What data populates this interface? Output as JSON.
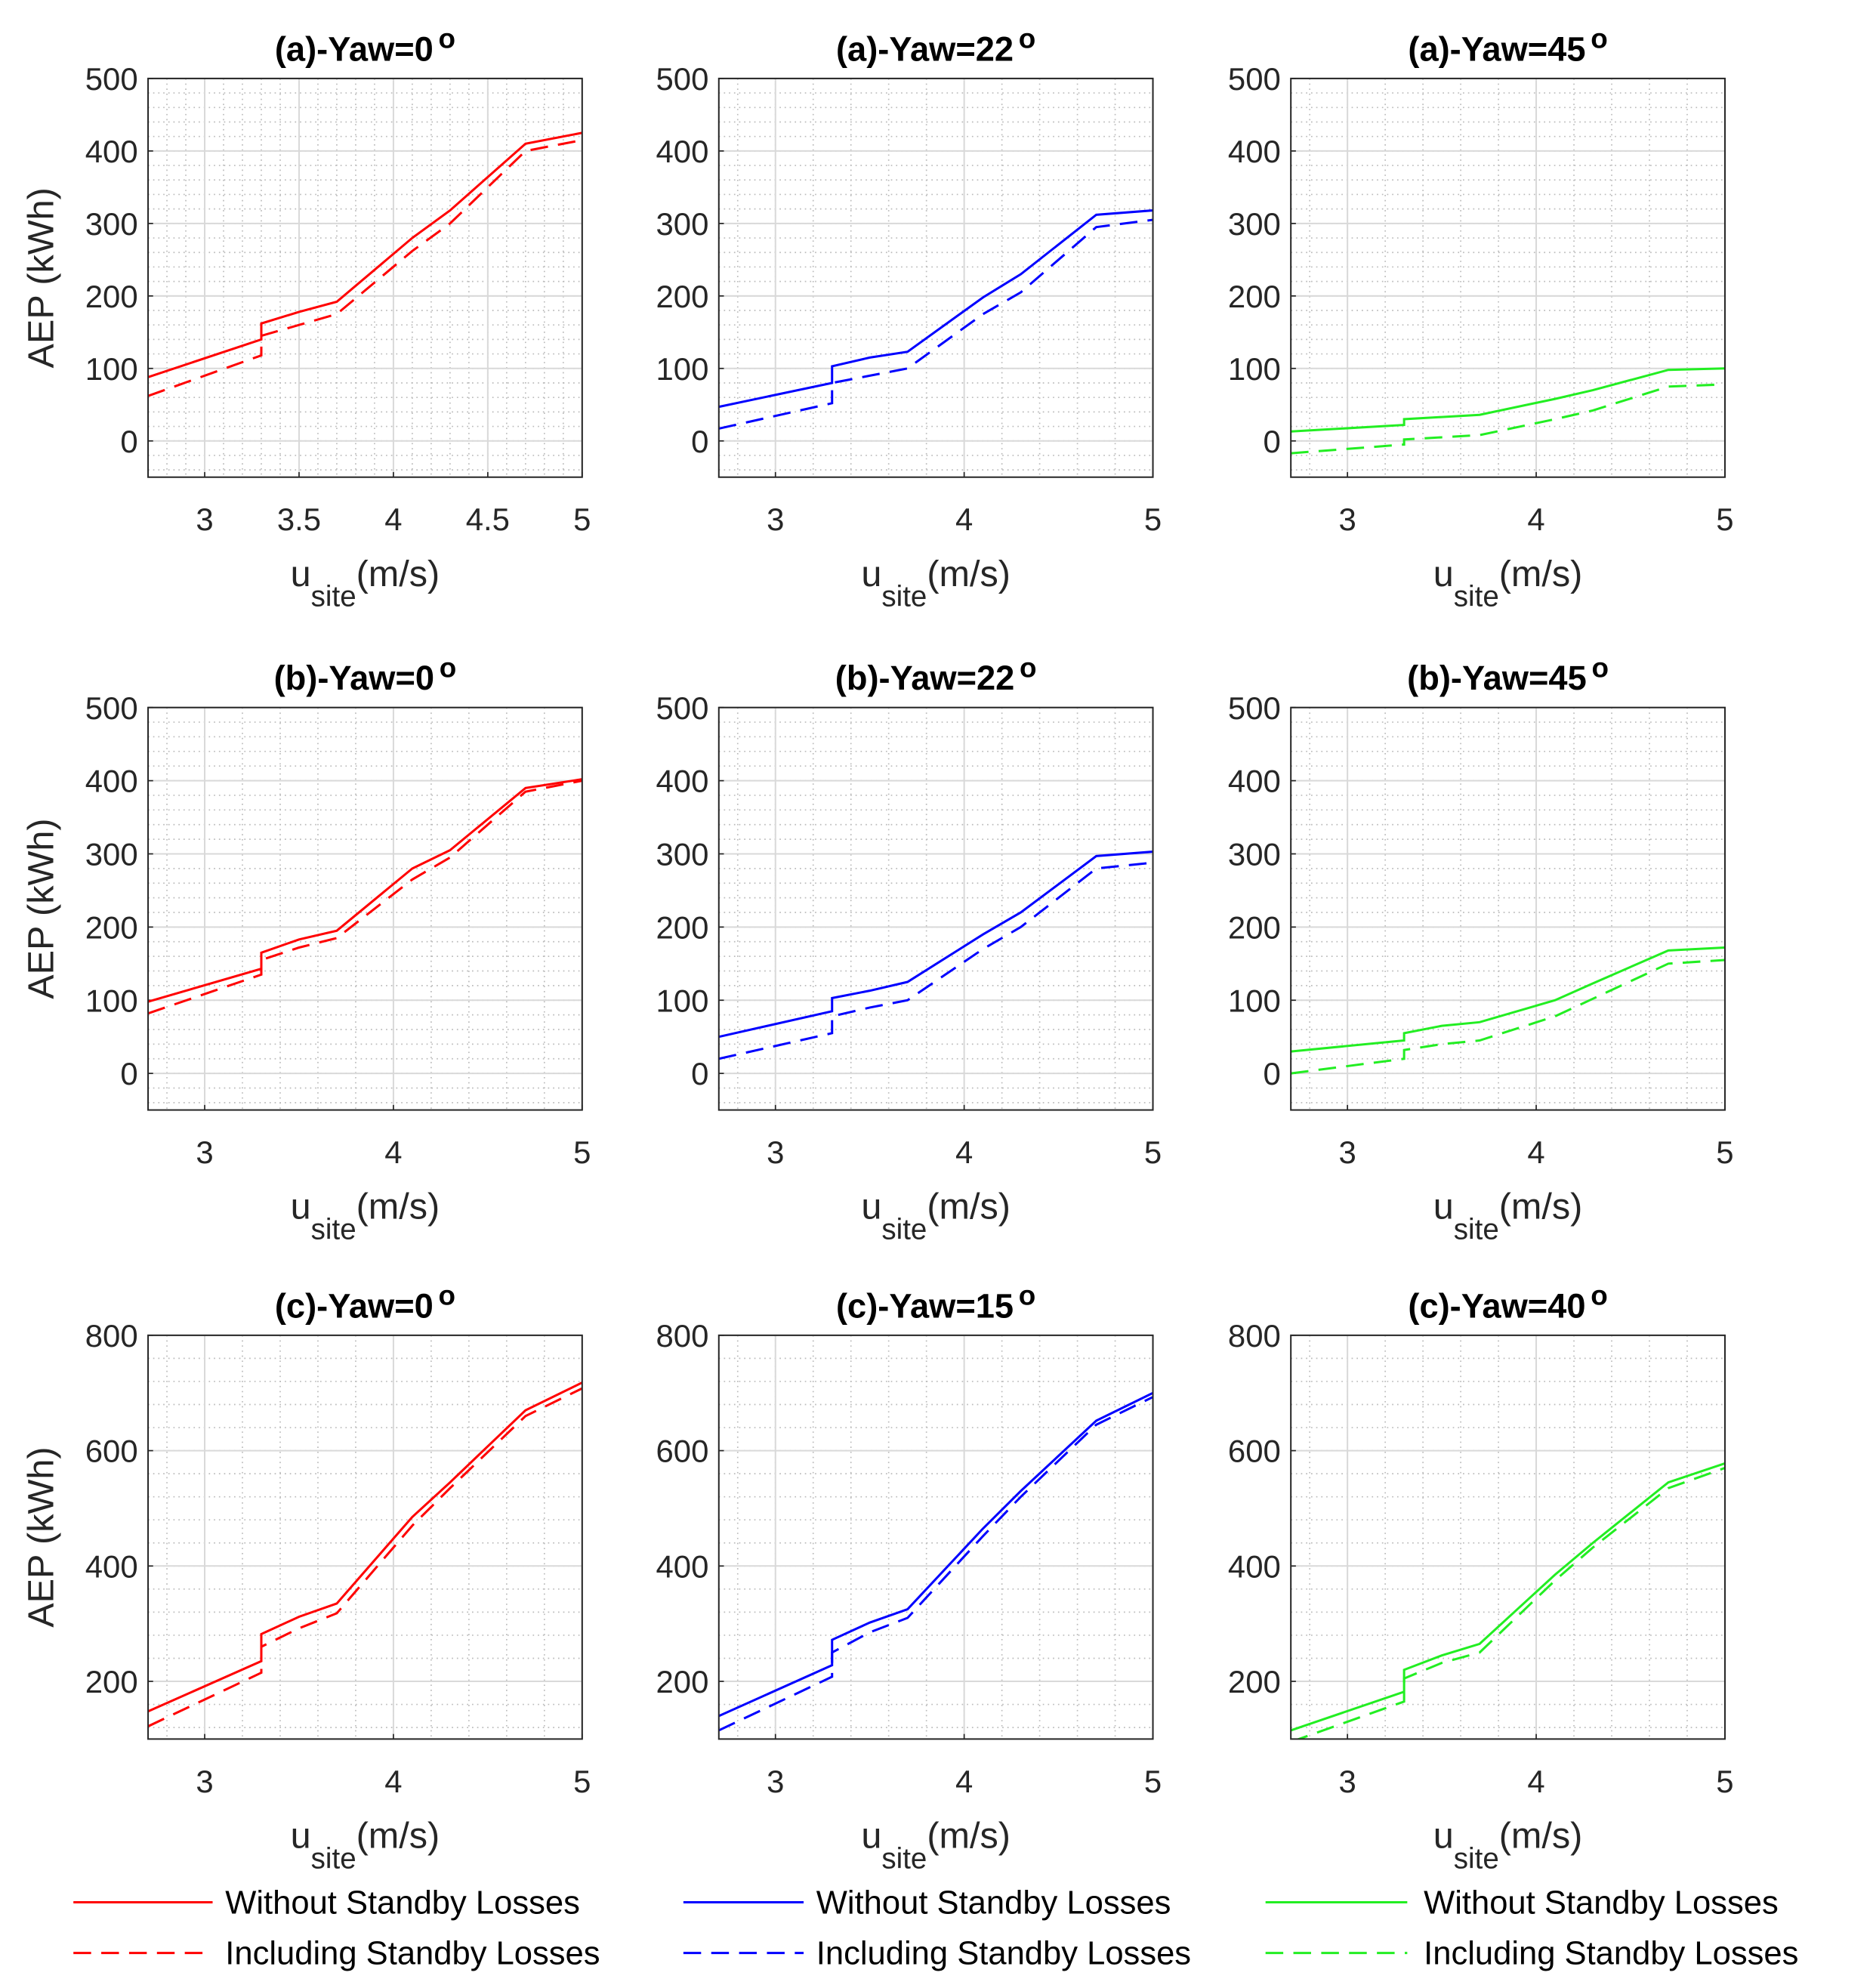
{
  "chart_data": [
    {
      "type": "line",
      "title": "(a)-Yaw=0",
      "title_superscript": "o",
      "ylabel": "AEP (kWh)",
      "xlabel": "u",
      "xlabel_subscript": "site",
      "xlabel_suffix": "(m/s)",
      "x": [
        2.7,
        3.3,
        3.3,
        3.5,
        3.7,
        4.1,
        4.3,
        4.7,
        5.0
      ],
      "xlim": [
        2.7,
        5
      ],
      "xticks": [
        3,
        3.5,
        4,
        4.5,
        5
      ],
      "ylim": [
        -50,
        500
      ],
      "yticks": [
        0,
        100,
        200,
        300,
        400,
        500
      ],
      "grid": true,
      "minor_grid": true,
      "series": [
        {
          "name": "Without Standby Losses",
          "color": "#ff0000",
          "line_style": "solid",
          "values": [
            88,
            140,
            162,
            178,
            192,
            280,
            318,
            410,
            425
          ]
        },
        {
          "name": "Including Standby Losses",
          "color": "#ff0000",
          "line_style": "dashed",
          "values": [
            62,
            118,
            145,
            160,
            175,
            262,
            300,
            400,
            415
          ]
        }
      ]
    },
    {
      "type": "line",
      "title": "(a)-Yaw=22",
      "title_superscript": "o",
      "xlabel": "u",
      "xlabel_subscript": "site",
      "xlabel_suffix": "(m/s)",
      "x": [
        2.7,
        3.3,
        3.3,
        3.5,
        3.7,
        4.1,
        4.3,
        4.7,
        5.0
      ],
      "xlim": [
        2.7,
        5
      ],
      "xticks": [
        3,
        4,
        5
      ],
      "ylim": [
        -50,
        500
      ],
      "yticks": [
        0,
        100,
        200,
        300,
        400,
        500
      ],
      "grid": true,
      "minor_grid": true,
      "series": [
        {
          "name": "Without Standby Losses",
          "color": "#0000ff",
          "line_style": "solid",
          "values": [
            47,
            80,
            103,
            115,
            123,
            198,
            230,
            312,
            318
          ]
        },
        {
          "name": "Including Standby Losses",
          "color": "#0000ff",
          "line_style": "dashed",
          "values": [
            17,
            52,
            80,
            90,
            100,
            175,
            205,
            295,
            305
          ]
        }
      ]
    },
    {
      "type": "line",
      "title": "(a)-Yaw=45",
      "title_superscript": "o",
      "xlabel": "u",
      "xlabel_subscript": "site",
      "xlabel_suffix": "(m/s)",
      "x": [
        2.7,
        3.3,
        3.3,
        3.5,
        3.7,
        4.1,
        4.3,
        4.7,
        5.0
      ],
      "xlim": [
        2.7,
        5
      ],
      "xticks": [
        3,
        4,
        5
      ],
      "ylim": [
        -50,
        500
      ],
      "yticks": [
        0,
        100,
        200,
        300,
        400,
        500
      ],
      "grid": true,
      "minor_grid": true,
      "series": [
        {
          "name": "Without Standby Losses",
          "color": "#22ee22",
          "line_style": "solid",
          "values": [
            13,
            22,
            30,
            33,
            36,
            58,
            70,
            98,
            100
          ]
        },
        {
          "name": "Including Standby Losses",
          "color": "#22ee22",
          "line_style": "dashed",
          "values": [
            -17,
            -5,
            2,
            5,
            8,
            30,
            42,
            75,
            78
          ]
        }
      ]
    },
    {
      "type": "line",
      "title": "(b)-Yaw=0",
      "title_superscript": "o",
      "ylabel": "AEP (kWh)",
      "xlabel": "u",
      "xlabel_subscript": "site",
      "xlabel_suffix": "(m/s)",
      "x": [
        2.7,
        3.3,
        3.3,
        3.5,
        3.7,
        4.1,
        4.3,
        4.7,
        5.0
      ],
      "xlim": [
        2.7,
        5
      ],
      "xticks": [
        3,
        4,
        5
      ],
      "ylim": [
        -50,
        500
      ],
      "yticks": [
        0,
        100,
        200,
        300,
        400,
        500
      ],
      "grid": true,
      "minor_grid": true,
      "series": [
        {
          "name": "Without Standby Losses",
          "color": "#ff0000",
          "line_style": "solid",
          "values": [
            98,
            143,
            165,
            183,
            195,
            280,
            305,
            390,
            402
          ]
        },
        {
          "name": "Including Standby Losses",
          "color": "#ff0000",
          "line_style": "dashed",
          "values": [
            82,
            135,
            155,
            172,
            185,
            265,
            295,
            385,
            400
          ]
        }
      ]
    },
    {
      "type": "line",
      "title": "(b)-Yaw=22",
      "title_superscript": "o",
      "xlabel": "u",
      "xlabel_subscript": "site",
      "xlabel_suffix": "(m/s)",
      "x": [
        2.7,
        3.3,
        3.3,
        3.5,
        3.7,
        4.1,
        4.3,
        4.7,
        5.0
      ],
      "xlim": [
        2.7,
        5
      ],
      "xticks": [
        3,
        4,
        5
      ],
      "ylim": [
        -50,
        500
      ],
      "yticks": [
        0,
        100,
        200,
        300,
        400,
        500
      ],
      "grid": true,
      "minor_grid": true,
      "series": [
        {
          "name": "Without Standby Losses",
          "color": "#0000ff",
          "line_style": "solid",
          "values": [
            50,
            85,
            103,
            113,
            125,
            190,
            220,
            297,
            303
          ]
        },
        {
          "name": "Including Standby Losses",
          "color": "#0000ff",
          "line_style": "dashed",
          "values": [
            20,
            55,
            78,
            90,
            100,
            170,
            200,
            280,
            288
          ]
        }
      ]
    },
    {
      "type": "line",
      "title": "(b)-Yaw=45",
      "title_superscript": "o",
      "xlabel": "u",
      "xlabel_subscript": "site",
      "xlabel_suffix": "(m/s)",
      "x": [
        2.7,
        3.3,
        3.3,
        3.5,
        3.7,
        4.1,
        4.3,
        4.7,
        5.0
      ],
      "xlim": [
        2.7,
        5
      ],
      "xticks": [
        3,
        4,
        5
      ],
      "ylim": [
        -50,
        500
      ],
      "yticks": [
        0,
        100,
        200,
        300,
        400,
        500
      ],
      "grid": true,
      "minor_grid": true,
      "series": [
        {
          "name": "Without Standby Losses",
          "color": "#22ee22",
          "line_style": "solid",
          "values": [
            30,
            45,
            55,
            65,
            70,
            100,
            123,
            168,
            172
          ]
        },
        {
          "name": "Including Standby Losses",
          "color": "#22ee22",
          "line_style": "dashed",
          "values": [
            0,
            20,
            32,
            40,
            45,
            78,
            102,
            150,
            155
          ]
        }
      ]
    },
    {
      "type": "line",
      "title": "(c)-Yaw=0",
      "title_superscript": "o",
      "ylabel": "AEP (kWh)",
      "xlabel": "u",
      "xlabel_subscript": "site",
      "xlabel_suffix": "(m/s)",
      "x": [
        2.7,
        3.3,
        3.3,
        3.5,
        3.7,
        4.1,
        4.3,
        4.7,
        5.0
      ],
      "xlim": [
        2.7,
        5
      ],
      "xticks": [
        3,
        4,
        5
      ],
      "ylim": [
        100,
        800
      ],
      "yticks": [
        200,
        400,
        600,
        800
      ],
      "grid": true,
      "minor_grid": true,
      "series": [
        {
          "name": "Without Standby Losses",
          "color": "#ff0000",
          "line_style": "solid",
          "values": [
            148,
            235,
            282,
            312,
            335,
            485,
            545,
            670,
            718
          ]
        },
        {
          "name": "Including Standby Losses",
          "color": "#ff0000",
          "line_style": "dashed",
          "values": [
            122,
            215,
            260,
            292,
            318,
            470,
            535,
            660,
            708
          ]
        }
      ]
    },
    {
      "type": "line",
      "title": "(c)-Yaw=15",
      "title_superscript": "o",
      "xlabel": "u",
      "xlabel_subscript": "site",
      "xlabel_suffix": "(m/s)",
      "x": [
        2.7,
        3.3,
        3.3,
        3.5,
        3.7,
        4.1,
        4.3,
        4.7,
        5.0
      ],
      "xlim": [
        2.7,
        5
      ],
      "xticks": [
        3,
        4,
        5
      ],
      "ylim": [
        100,
        800
      ],
      "yticks": [
        200,
        400,
        600,
        800
      ],
      "grid": true,
      "minor_grid": true,
      "series": [
        {
          "name": "Without Standby Losses",
          "color": "#0000ff",
          "line_style": "solid",
          "values": [
            140,
            228,
            272,
            302,
            325,
            465,
            530,
            652,
            700
          ]
        },
        {
          "name": "Including Standby Losses",
          "color": "#0000ff",
          "line_style": "dashed",
          "values": [
            115,
            208,
            250,
            285,
            310,
            452,
            520,
            645,
            693
          ]
        }
      ]
    },
    {
      "type": "line",
      "title": "(c)-Yaw=40",
      "title_superscript": "o",
      "xlabel": "u",
      "xlabel_subscript": "site",
      "xlabel_suffix": "(m/s)",
      "x": [
        2.7,
        3.3,
        3.3,
        3.5,
        3.7,
        4.1,
        4.3,
        4.7,
        5.0
      ],
      "xlim": [
        2.7,
        5
      ],
      "xticks": [
        3,
        4,
        5
      ],
      "ylim": [
        100,
        800
      ],
      "yticks": [
        200,
        400,
        600,
        800
      ],
      "grid": true,
      "minor_grid": true,
      "series": [
        {
          "name": "Without Standby Losses",
          "color": "#22ee22",
          "line_style": "solid",
          "values": [
            115,
            182,
            220,
            245,
            265,
            385,
            440,
            545,
            578
          ]
        },
        {
          "name": "Including Standby Losses",
          "color": "#22ee22",
          "line_style": "dashed",
          "values": [
            95,
            165,
            205,
            232,
            250,
            375,
            432,
            535,
            570
          ]
        }
      ]
    }
  ]
}
